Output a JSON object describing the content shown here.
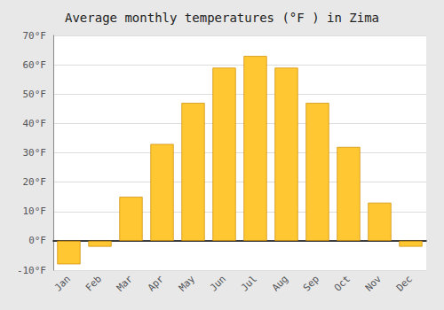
{
  "chart_data": {
    "type": "bar",
    "title": "Average monthly temperatures (°F ) in Zima",
    "categories": [
      "Jan",
      "Feb",
      "Mar",
      "Apr",
      "May",
      "Jun",
      "Jul",
      "Aug",
      "Sep",
      "Oct",
      "Nov",
      "Dec"
    ],
    "values": [
      -8,
      -2,
      15,
      33,
      47,
      59,
      63,
      59,
      47,
      32,
      13,
      -2
    ],
    "color": "#FFC832",
    "ylim": [
      -10,
      70
    ],
    "yticks": [
      {
        "value": -10,
        "label": "-10°F"
      },
      {
        "value": 0,
        "label": "0°F"
      },
      {
        "value": 10,
        "label": "10°F"
      },
      {
        "value": 20,
        "label": "20°F"
      },
      {
        "value": 30,
        "label": "30°F"
      },
      {
        "value": 40,
        "label": "40°F"
      },
      {
        "value": 50,
        "label": "50°F"
      },
      {
        "value": 60,
        "label": "60°F"
      },
      {
        "value": 70,
        "label": "70°F"
      }
    ],
    "grid": true
  }
}
